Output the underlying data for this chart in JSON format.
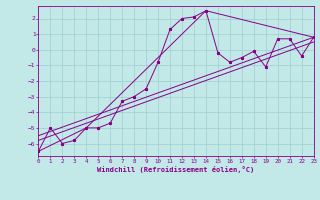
{
  "xlabel": "Windchill (Refroidissement éolien,°C)",
  "xlim": [
    0,
    23
  ],
  "ylim": [
    -6.8,
    2.8
  ],
  "yticks": [
    2,
    1,
    0,
    -1,
    -2,
    -3,
    -4,
    -5,
    -6
  ],
  "xticks": [
    0,
    1,
    2,
    3,
    4,
    5,
    6,
    7,
    8,
    9,
    10,
    11,
    12,
    13,
    14,
    15,
    16,
    17,
    18,
    19,
    20,
    21,
    22,
    23
  ],
  "bg_color": "#c2e8e8",
  "grid_color": "#9ecece",
  "line_color": "#880088",
  "line1_x": [
    0,
    1,
    2,
    3,
    4,
    5,
    6,
    7,
    8,
    9,
    10,
    11,
    12,
    13,
    14,
    15,
    16,
    17,
    18,
    19,
    20,
    21,
    22,
    23
  ],
  "line1_y": [
    -6.5,
    -5.0,
    -6.0,
    -5.8,
    -5.0,
    -5.0,
    -4.7,
    -3.3,
    -3.0,
    -2.5,
    -0.8,
    1.3,
    2.0,
    2.1,
    2.5,
    -0.2,
    -0.8,
    -0.5,
    -0.1,
    -1.1,
    0.7,
    0.7,
    -0.4,
    0.8
  ],
  "line2_x": [
    0,
    4,
    14,
    23
  ],
  "line2_y": [
    -6.5,
    -5.0,
    2.5,
    0.8
  ],
  "line3_x": [
    0,
    23
  ],
  "line3_y": [
    -5.5,
    0.8
  ],
  "line4_x": [
    0,
    23
  ],
  "line4_y": [
    -5.8,
    0.5
  ],
  "tick_fontsize": 4.2,
  "xlabel_fontsize": 5.0,
  "lw": 0.7,
  "ms": 2.0
}
